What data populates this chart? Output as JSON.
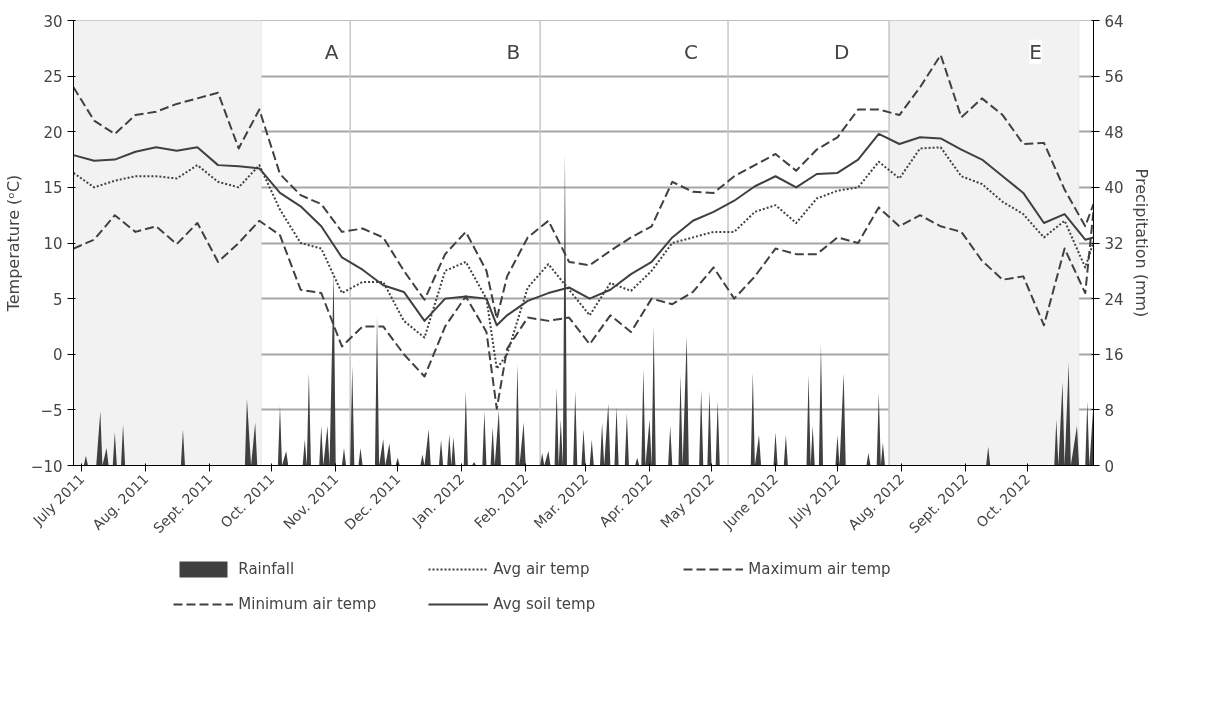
{
  "chart_data": {
    "type": "line",
    "ylabel": "Temperature (ᵒC)",
    "y2label": "Precipitation (mm)",
    "x": [
      "2011-06-27",
      "2011-07-07",
      "2011-07-17",
      "2011-07-27",
      "2011-08-06",
      "2011-08-16",
      "2011-08-26",
      "2011-09-05",
      "2011-09-15",
      "2011-09-25",
      "2011-10-05",
      "2011-10-15",
      "2011-10-25",
      "2011-11-04",
      "2011-11-14",
      "2011-11-24",
      "2011-12-04",
      "2011-12-14",
      "2011-12-24",
      "2012-01-03",
      "2012-01-13",
      "2012-01-18",
      "2012-01-23",
      "2012-02-02",
      "2012-02-12",
      "2012-02-22",
      "2012-03-03",
      "2012-03-13",
      "2012-03-23",
      "2012-04-02",
      "2012-04-12",
      "2012-04-22",
      "2012-05-02",
      "2012-05-12",
      "2012-05-22",
      "2012-06-01",
      "2012-06-11",
      "2012-06-21",
      "2012-07-01",
      "2012-07-11",
      "2012-07-21",
      "2012-07-31",
      "2012-08-10",
      "2012-08-20",
      "2012-08-30",
      "2012-09-09",
      "2012-09-19",
      "2012-09-29",
      "2012-10-09",
      "2012-10-19",
      "2012-10-29",
      "2012-11-02"
    ],
    "series": [
      {
        "name": "Rainfall",
        "type": "area",
        "axis": "y2",
        "color": "#404040",
        "x": [
          "2011-06-27",
          "2011-07-02",
          "2011-07-03",
          "2011-07-04",
          "2011-07-08",
          "2011-07-10",
          "2011-07-11",
          "2011-07-13",
          "2011-07-14",
          "2011-07-16",
          "2011-07-17",
          "2011-07-18",
          "2011-07-20",
          "2011-07-21",
          "2011-07-22",
          "2011-08-18",
          "2011-08-19",
          "2011-08-20",
          "2011-09-18",
          "2011-09-19",
          "2011-09-21",
          "2011-09-23",
          "2011-09-24",
          "2011-10-04",
          "2011-10-05",
          "2011-10-06",
          "2011-10-08",
          "2011-10-09",
          "2011-10-16",
          "2011-10-17",
          "2011-10-18",
          "2011-10-19",
          "2011-10-20",
          "2011-10-24",
          "2011-10-25",
          "2011-10-26",
          "2011-10-28",
          "2011-10-29",
          "2011-10-31",
          "2011-11-01",
          "2011-11-04",
          "2011-11-05",
          "2011-11-06",
          "2011-11-08",
          "2011-11-09",
          "2011-11-10",
          "2011-11-12",
          "2011-11-13",
          "2011-11-14",
          "2011-11-20",
          "2011-11-21",
          "2011-11-22",
          "2011-11-24",
          "2011-11-25",
          "2011-11-27",
          "2011-11-28",
          "2011-11-30",
          "2011-12-01",
          "2011-12-02",
          "2011-12-12",
          "2011-12-13",
          "2011-12-14",
          "2011-12-16",
          "2011-12-17",
          "2011-12-21",
          "2011-12-22",
          "2011-12-23",
          "2011-12-25",
          "2011-12-26",
          "2011-12-27",
          "2011-12-28",
          "2011-12-29",
          "2012-01-02",
          "2012-01-03",
          "2012-01-04",
          "2012-01-06",
          "2012-01-07",
          "2012-01-08",
          "2012-01-11",
          "2012-01-12",
          "2012-01-13",
          "2012-01-15",
          "2012-01-16",
          "2012-01-17",
          "2012-01-19",
          "2012-01-20",
          "2012-01-27",
          "2012-01-28",
          "2012-01-29",
          "2012-01-31",
          "2012-02-01",
          "2012-02-08",
          "2012-02-09",
          "2012-02-10",
          "2012-02-12",
          "2012-02-13",
          "2012-02-15",
          "2012-02-16",
          "2012-02-17",
          "2012-02-18",
          "2012-02-19",
          "2012-02-20",
          "2012-02-21",
          "2012-02-24",
          "2012-02-25",
          "2012-02-26",
          "2012-02-28",
          "2012-02-29",
          "2012-03-01",
          "2012-03-03",
          "2012-03-04",
          "2012-03-05",
          "2012-03-08",
          "2012-03-09",
          "2012-03-10",
          "2012-03-12",
          "2012-03-13",
          "2012-03-15",
          "2012-03-16",
          "2012-03-17",
          "2012-03-20",
          "2012-03-21",
          "2012-03-22",
          "2012-03-25",
          "2012-03-26",
          "2012-03-27",
          "2012-03-28",
          "2012-03-29",
          "2012-03-30",
          "2012-04-01",
          "2012-04-02",
          "2012-04-03",
          "2012-04-04",
          "2012-04-10",
          "2012-04-11",
          "2012-04-12",
          "2012-04-15",
          "2012-04-16",
          "2012-04-17",
          "2012-04-19",
          "2012-04-20",
          "2012-04-25",
          "2012-04-26",
          "2012-04-27",
          "2012-04-29",
          "2012-04-30",
          "2012-05-01",
          "2012-05-03",
          "2012-05-04",
          "2012-05-05",
          "2012-05-20",
          "2012-05-21",
          "2012-05-22",
          "2012-05-24",
          "2012-05-25",
          "2012-05-31",
          "2012-06-01",
          "2012-06-02",
          "2012-06-05",
          "2012-06-06",
          "2012-06-07",
          "2012-06-16",
          "2012-06-17",
          "2012-06-18",
          "2012-06-19",
          "2012-06-20",
          "2012-06-22",
          "2012-06-23",
          "2012-06-24",
          "2012-06-30",
          "2012-07-01",
          "2012-07-02",
          "2012-07-04",
          "2012-07-05",
          "2012-07-15",
          "2012-07-16",
          "2012-07-17",
          "2012-07-20",
          "2012-07-21",
          "2012-07-22",
          "2012-07-23",
          "2012-07-24",
          "2012-09-11",
          "2012-09-12",
          "2012-09-13",
          "2012-10-14",
          "2012-10-15",
          "2012-10-16",
          "2012-10-18",
          "2012-10-19",
          "2012-10-21",
          "2012-10-22",
          "2012-10-25",
          "2012-10-26",
          "2012-10-29",
          "2012-10-30",
          "2012-10-31",
          "2012-11-02"
        ],
        "values": [
          0,
          0,
          1.4,
          0,
          0,
          7.8,
          0,
          2.5,
          0,
          0,
          4.8,
          0,
          0,
          5.9,
          0,
          0,
          5.2,
          0,
          0,
          9.6,
          0,
          6.2,
          0,
          0,
          8.6,
          0,
          2.1,
          0,
          0,
          3.7,
          0,
          13.4,
          0,
          0,
          5.7,
          0,
          5.7,
          0,
          28,
          0,
          0,
          2.5,
          0,
          0,
          14.4,
          0,
          0,
          2.5,
          0,
          0,
          21.6,
          0,
          3.8,
          0,
          3.2,
          0,
          0,
          1.1,
          0,
          0,
          1.6,
          0,
          5.2,
          0,
          0,
          3.7,
          0,
          0,
          4.5,
          0,
          4.1,
          0,
          0,
          10.7,
          0,
          0,
          0.5,
          0,
          0,
          7.8,
          0,
          0,
          5.5,
          0,
          7.9,
          0,
          0,
          14.6,
          0,
          6.2,
          0,
          0,
          1.8,
          0,
          2.1,
          0,
          0,
          11.2,
          0,
          6.6,
          0,
          45,
          0,
          0,
          10.7,
          0,
          0,
          5.2,
          0,
          0,
          3.7,
          0,
          0,
          6.2,
          0,
          8.9,
          0,
          0,
          8.5,
          0,
          0,
          7.5,
          0,
          0,
          1.1,
          0,
          0,
          14.0,
          0,
          6.6,
          0,
          20.2,
          0,
          0,
          5.7,
          0,
          0,
          13.0,
          0,
          18.7,
          0,
          0,
          10.9,
          0,
          0,
          10.7,
          0,
          0,
          9.3,
          0,
          0,
          13.4,
          0,
          4.4,
          0,
          0,
          4.8,
          0,
          0,
          4.4,
          0,
          0,
          13.0,
          0,
          5.7,
          0,
          0,
          17.5,
          0,
          0,
          4.4,
          0,
          13.3,
          0,
          0,
          1.8,
          0,
          0,
          10.5,
          0,
          3.3,
          0,
          0,
          2.7,
          0,
          0,
          6.6,
          0,
          12.0,
          0,
          14.8,
          0,
          5.7,
          0,
          0,
          9.3,
          0,
          8.9
        ]
      },
      {
        "name": "Avg air temp",
        "color": "#404040",
        "line_style": "dotted",
        "values": [
          16.3,
          15.0,
          15.6,
          16.0,
          16.0,
          15.8,
          17.0,
          15.5,
          15.0,
          17.0,
          13.0,
          10.0,
          9.5,
          5.5,
          6.5,
          6.5,
          3.0,
          1.5,
          7.5,
          8.3,
          5.0,
          -1.3,
          0.0,
          6.0,
          8.1,
          5.8,
          3.5,
          6.4,
          5.7,
          7.5,
          10.0,
          10.5,
          11.0,
          11.0,
          12.8,
          13.4,
          11.8,
          14.0,
          14.7,
          15.0,
          17.3,
          15.8,
          18.5,
          18.6,
          16.0,
          15.3,
          13.7,
          12.6,
          10.5,
          12.0,
          7.8,
          10.1
        ]
      },
      {
        "name": "Maximum air temp",
        "color": "#404040",
        "line_style": "dashed",
        "values": [
          24.0,
          21.0,
          19.8,
          21.5,
          21.8,
          22.5,
          23.0,
          23.5,
          18.5,
          22.0,
          16.2,
          14.3,
          13.5,
          11.0,
          11.3,
          10.5,
          7.5,
          4.9,
          9.0,
          11.0,
          7.5,
          3.2,
          7.0,
          10.5,
          12.0,
          8.3,
          8.0,
          9.3,
          10.5,
          11.5,
          15.5,
          14.6,
          14.5,
          16.0,
          17.0,
          18.0,
          16.5,
          18.4,
          19.5,
          22.0,
          22.0,
          21.5,
          24.0,
          26.9,
          21.3,
          23.0,
          21.5,
          18.9,
          19.0,
          14.8,
          11.5,
          13.5
        ]
      },
      {
        "name": "Minimum air temp",
        "color": "#404040",
        "line_style": "dashed",
        "values": [
          9.5,
          10.3,
          12.5,
          11.0,
          11.5,
          9.9,
          11.8,
          8.3,
          10.0,
          12.0,
          10.7,
          5.8,
          5.5,
          0.7,
          2.5,
          2.5,
          0.0,
          -2.0,
          2.5,
          5.2,
          2.0,
          -4.9,
          0.5,
          3.3,
          3.0,
          3.3,
          0.9,
          3.5,
          2.0,
          5.0,
          4.5,
          5.6,
          7.8,
          5.0,
          7.0,
          9.5,
          9.0,
          9.0,
          10.5,
          10.0,
          13.2,
          11.5,
          12.5,
          11.5,
          11.0,
          8.4,
          6.7,
          7.0,
          2.6,
          9.5,
          5.5,
          12.9
        ]
      },
      {
        "name": "Avg soil temp",
        "color": "#404040",
        "line_style": "solid",
        "values": [
          17.9,
          17.4,
          17.5,
          18.2,
          18.6,
          18.3,
          18.6,
          17.0,
          16.9,
          16.7,
          14.5,
          13.3,
          11.5,
          8.7,
          7.6,
          6.2,
          5.6,
          3.0,
          5.0,
          5.2,
          5.0,
          2.6,
          3.5,
          4.8,
          5.5,
          6.0,
          5.0,
          5.8,
          7.2,
          8.3,
          10.5,
          12.0,
          12.8,
          13.8,
          15.1,
          16.0,
          15.0,
          16.2,
          16.3,
          17.5,
          19.8,
          18.9,
          19.5,
          19.4,
          18.4,
          17.5,
          16.0,
          14.5,
          11.8,
          12.6,
          10.3,
          10.5
        ]
      }
    ],
    "xlim": [
      "2011-06-27",
      "2012-11-02"
    ],
    "ylim": [
      -10,
      30
    ],
    "yticks": [
      -10,
      -5,
      0,
      5,
      10,
      15,
      20,
      25,
      30
    ],
    "y2lim": [
      0,
      64
    ],
    "y2ticks": [
      0,
      8,
      16,
      24,
      32,
      40,
      48,
      56,
      64
    ],
    "xticks": [
      {
        "value": "2011-07-01",
        "label": "July 2011"
      },
      {
        "value": "2011-08-01",
        "label": "Aug. 2011"
      },
      {
        "value": "2011-09-01",
        "label": "Sept. 2011"
      },
      {
        "value": "2011-10-01",
        "label": "Oct. 2011"
      },
      {
        "value": "2011-11-01",
        "label": "Nov. 2011"
      },
      {
        "value": "2011-12-01",
        "label": "Dec. 2011"
      },
      {
        "value": "2012-01-01",
        "label": "Jan. 2012"
      },
      {
        "value": "2012-02-01",
        "label": "Feb. 2012"
      },
      {
        "value": "2012-03-01",
        "label": "Mar. 2012"
      },
      {
        "value": "2012-04-01",
        "label": "Apr. 2012"
      },
      {
        "value": "2012-05-01",
        "label": "May 2012"
      },
      {
        "value": "2012-06-01",
        "label": "June 2012"
      },
      {
        "value": "2012-07-01",
        "label": "July 2012"
      },
      {
        "value": "2012-08-01",
        "label": "Aug. 2012"
      },
      {
        "value": "2012-09-01",
        "label": "Sept. 2012"
      },
      {
        "value": "2012-10-01",
        "label": "Oct. 2012"
      }
    ],
    "bands": [
      {
        "axis": "x",
        "from": "2011-06-27",
        "to": "2011-09-26",
        "color": "#f2f2f2"
      },
      {
        "axis": "x",
        "from": "2012-07-26",
        "to": "2012-10-26",
        "color": "#f2f2f2"
      }
    ],
    "ref_lines": [
      {
        "axis": "x",
        "value": "2011-11-08",
        "color": "#c8c8c8"
      },
      {
        "axis": "x",
        "value": "2012-02-08",
        "color": "#c8c8c8"
      },
      {
        "axis": "x",
        "value": "2012-05-09",
        "color": "#c8c8c8"
      },
      {
        "axis": "x",
        "value": "2012-07-26",
        "color": "#c8c8c8"
      }
    ],
    "annotations": [
      {
        "text": "A",
        "x": "2011-10-30",
        "y": 27.2
      },
      {
        "text": "B",
        "x": "2012-01-26",
        "y": 27.2
      },
      {
        "text": "C",
        "x": "2012-04-21",
        "y": 27.2
      },
      {
        "text": "D",
        "x": "2012-07-03",
        "y": 27.2
      },
      {
        "text": "E",
        "x": "2012-10-05",
        "y": 27.2
      }
    ],
    "grid": "y",
    "legend": "bottom",
    "marker": "none"
  }
}
